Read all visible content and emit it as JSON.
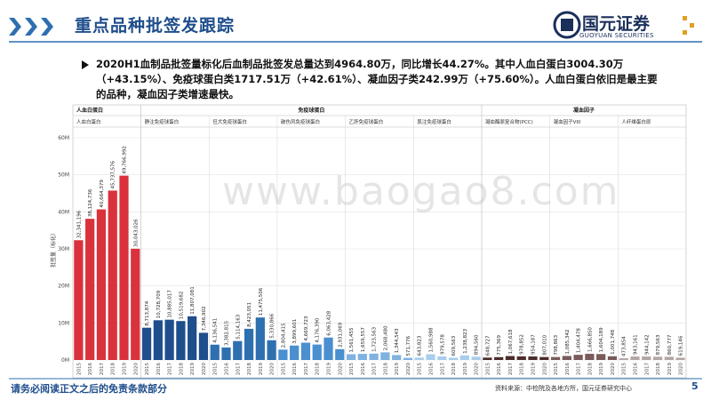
{
  "header": {
    "title": "重点品种批签发跟踪",
    "logo_name": "国元证券",
    "logo_sub": "GUOYUAN SECURITIES"
  },
  "summary": "2020H1血制品批签量标化后血制品批签发总量达到4964.80万，同比增长44.27%。其中人血白蛋白3004.30万（+43.15%）、免疫球蛋白类1717.51万（+42.61%）、凝血因子类242.99万（+75.60%）。人血白蛋白依旧是最主要的品种，凝血因子类增速最快。",
  "watermark": "www.baogao8.com",
  "footer": {
    "disclaimer": "请务必阅读正文之后的免责条款部分",
    "source": "资料来源：中检院及各地方所，国元证券研究中心",
    "page": "5"
  },
  "chart_data": {
    "type": "bar",
    "y_label": "批签量（标化）",
    "ylim": [
      0,
      60000000
    ],
    "yticks": [
      {
        "value": 0,
        "label": "0M"
      },
      {
        "value": 10000000,
        "label": "10M"
      },
      {
        "value": 20000000,
        "label": "20M"
      },
      {
        "value": 30000000,
        "label": "30M"
      },
      {
        "value": 40000000,
        "label": "40M"
      },
      {
        "value": 50000000,
        "label": "50M"
      },
      {
        "value": 60000000,
        "label": "60M"
      }
    ],
    "grid": true,
    "categories": [
      "2015",
      "2016",
      "2017",
      "2018",
      "2019",
      "2020"
    ],
    "groups": [
      {
        "name": "人血白蛋白",
        "series": [
          {
            "name": "人血白蛋白",
            "color": "#d9323c",
            "values": [
              32341196,
              38124736,
              40664379,
              45737576,
              49766992,
              30043026
            ],
            "value_labels": [
              "32,341,196",
              "38,124,736",
              "40,664,379",
              "45,737,576",
              "49,766,992",
              "30,043,026"
            ]
          }
        ]
      },
      {
        "name": "免疫球蛋白",
        "series": [
          {
            "name": "静注免疫球蛋白",
            "color": "#1f4e8c",
            "values": [
              8713874,
              10728709,
              10885017,
              10519682,
              11807081,
              7346902
            ],
            "value_labels": [
              "8,713,874",
              "10,728,709",
              "10,885,017",
              "10,519,682",
              "11,807,081",
              "7,346,902"
            ]
          },
          {
            "name": "狂犬免疫球蛋白",
            "color": "#2e6fb0",
            "values": [
              4136541,
              3382815,
              5114163,
              8423051,
              11475506,
              5330866
            ],
            "value_labels": [
              "4,136,541",
              "3,382,815",
              "5,114,163",
              "8,423,051",
              "11,475,506",
              "5,330,866"
            ]
          },
          {
            "name": "破伤风免疫球蛋白",
            "color": "#4a8fd0",
            "values": [
              2804415,
              3899601,
              4669723,
              4176390,
              6063428,
              2931069
            ],
            "value_labels": [
              "2,804,415",
              "3,899,601",
              "4,669,723",
              "4,176,390",
              "6,063,428",
              "2,931,069"
            ]
          },
          {
            "name": "乙肝免疫球蛋白",
            "color": "#7fb2e0",
            "values": [
              1561455,
              1659557,
              1723563,
              2068480,
              1344543,
              571776
            ],
            "value_labels": [
              "1,561,455",
              "1,659,557",
              "1,723,563",
              "2,068,480",
              "1,344,543",
              "571,776"
            ]
          },
          {
            "name": "肌注免疫球蛋白",
            "color": "#a9cdee",
            "values": [
              643823,
              1560988,
              979578,
              609563,
              1238823,
              894560
            ],
            "value_labels": [
              "643,823",
              "1,560,988",
              "979,578",
              "609,563",
              "1,238,823",
              "894,560"
            ]
          }
        ]
      },
      {
        "name": "凝血因子",
        "series": [
          {
            "name": "凝血酶原复合物(PCC)",
            "color": "#4d2b2b",
            "values": [
              648727,
              775369,
              1067618,
              978852,
              954187,
              807010
            ],
            "value_labels": [
              "648,727",
              "775,369",
              "1,067,618",
              "978,852",
              "954,187",
              "807,010"
            ]
          },
          {
            "name": "凝血因子VIII",
            "color": "#7a5a5a",
            "values": [
              798863,
              1085342,
              1404478,
              1666850,
              1604189,
              1001748
            ],
            "value_labels": [
              "798,863",
              "1,085,342",
              "1,404,478",
              "1,666,850",
              "1,604,189",
              "1,001,748"
            ]
          },
          {
            "name": "人纤维蛋白原",
            "color": "#b5a5a5",
            "values": [
              473854,
              943161,
              944142,
              879563,
              860777,
              619146
            ],
            "value_labels": [
              "473,854",
              "943,161",
              "944,142",
              "879,563",
              "860,777",
              "619,146"
            ]
          }
        ]
      }
    ]
  }
}
